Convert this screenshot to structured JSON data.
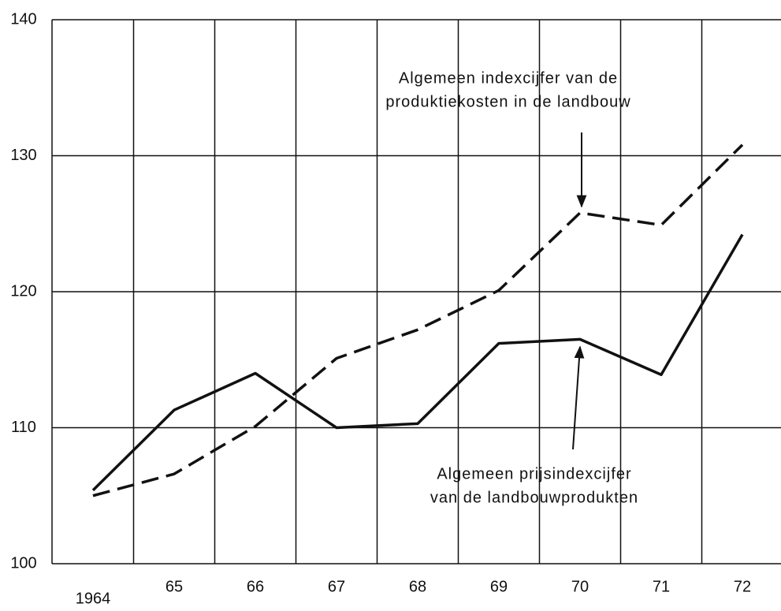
{
  "chart_data": {
    "type": "line",
    "categories": [
      "1964",
      "65",
      "66",
      "67",
      "68",
      "69",
      "70",
      "71",
      "72"
    ],
    "series": [
      {
        "color": "#111111",
        "dashed": true,
        "values": [
          105.0,
          106.6,
          110.1,
          115.1,
          117.2,
          120.1,
          125.8,
          124.9,
          130.8
        ]
      },
      {
        "color": "#111111",
        "dashed": false,
        "values": [
          105.4,
          111.3,
          114.0,
          110.0,
          110.3,
          116.2,
          116.5,
          113.9,
          124.2
        ]
      }
    ],
    "ylim": [
      100,
      140
    ],
    "yticks": [
      100,
      110,
      120,
      130,
      140
    ],
    "grid": true,
    "annotations": [
      {
        "lines": [
          "Algemeen indexcijfer van de",
          "produktiekosten in de landbouw"
        ]
      },
      {
        "lines": [
          "Algemeen prijsindexcijfer",
          "van de landbouwprodukten"
        ]
      }
    ]
  }
}
